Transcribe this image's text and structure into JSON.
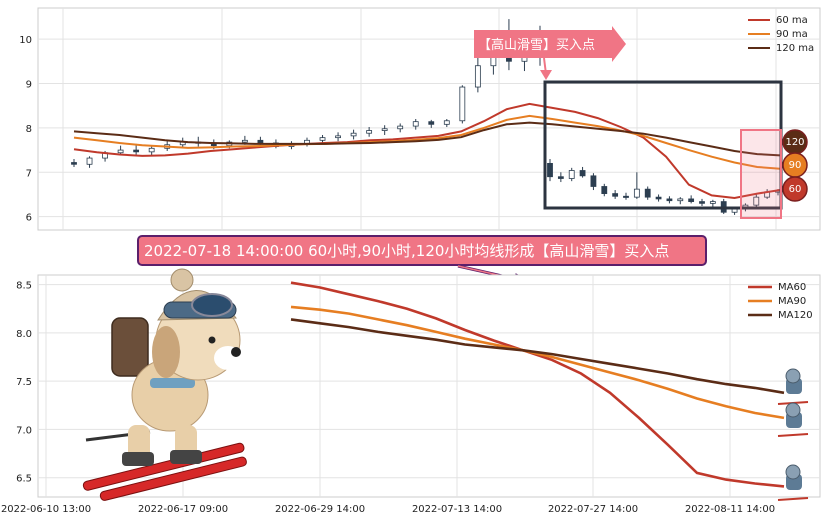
{
  "colors": {
    "ma60": "#c0392b",
    "ma90": "#e67e22",
    "ma120": "#5b2c16",
    "candle_up": "#ffffff",
    "candle_down": "#2c3e50",
    "highlight_box": "#2c3440",
    "pink_box": "#f07585",
    "callout_bg": "#f07585",
    "banner_bg": "#f07585",
    "banner_border": "#5b1f6b"
  },
  "annotations": {
    "callout_label": "【高山滑雪】买入点",
    "banner_label": "2022-07-18 14:00:00 60小时,90小时,120小时均线形成【高山滑雪】买入点",
    "badge_labels": [
      "120",
      "90",
      "60"
    ]
  },
  "chart_data": [
    {
      "type": "candlestick",
      "title": "",
      "ylim": [
        5.7,
        10.7
      ],
      "yticks": [
        6,
        7,
        8,
        9,
        10
      ],
      "grid": true,
      "legend_position": "top-right",
      "series": [
        {
          "name": "60 ma",
          "values": [
            7.52,
            7.45,
            7.4,
            7.37,
            7.38,
            7.42,
            7.48,
            7.52,
            7.56,
            7.6,
            7.63,
            7.66,
            7.68,
            7.72,
            7.74,
            7.78,
            7.82,
            7.92,
            8.15,
            8.42,
            8.54,
            8.45,
            8.36,
            8.22,
            8.02,
            7.78,
            7.35,
            6.72,
            6.48,
            6.42,
            6.52,
            6.6
          ]
        },
        {
          "name": "90 ma",
          "values": [
            7.78,
            7.72,
            7.66,
            7.61,
            7.58,
            7.55,
            7.56,
            7.58,
            7.59,
            7.61,
            7.63,
            7.64,
            7.66,
            7.68,
            7.7,
            7.73,
            7.77,
            7.84,
            8.0,
            8.18,
            8.27,
            8.2,
            8.12,
            8.04,
            7.94,
            7.82,
            7.66,
            7.5,
            7.35,
            7.22,
            7.12,
            7.08
          ]
        },
        {
          "name": "120 ma",
          "values": [
            7.92,
            7.88,
            7.84,
            7.78,
            7.72,
            7.68,
            7.66,
            7.65,
            7.64,
            7.64,
            7.64,
            7.64,
            7.65,
            7.66,
            7.68,
            7.7,
            7.73,
            7.79,
            7.95,
            8.08,
            8.12,
            8.08,
            8.03,
            7.98,
            7.93,
            7.87,
            7.78,
            7.68,
            7.58,
            7.48,
            7.41,
            7.38
          ]
        }
      ],
      "candles": [
        [
          7.22,
          7.3,
          7.12,
          7.18
        ],
        [
          7.18,
          7.36,
          7.1,
          7.32
        ],
        [
          7.32,
          7.48,
          7.24,
          7.44
        ],
        [
          7.44,
          7.6,
          7.38,
          7.5
        ],
        [
          7.5,
          7.64,
          7.4,
          7.46
        ],
        [
          7.46,
          7.58,
          7.36,
          7.54
        ],
        [
          7.54,
          7.7,
          7.48,
          7.62
        ],
        [
          7.62,
          7.78,
          7.56,
          7.68
        ],
        [
          7.68,
          7.8,
          7.58,
          7.66
        ],
        [
          7.66,
          7.74,
          7.52,
          7.6
        ],
        [
          7.6,
          7.72,
          7.54,
          7.68
        ],
        [
          7.68,
          7.82,
          7.62,
          7.72
        ],
        [
          7.72,
          7.8,
          7.62,
          7.66
        ],
        [
          7.66,
          7.74,
          7.54,
          7.58
        ],
        [
          7.58,
          7.7,
          7.52,
          7.64
        ],
        [
          7.64,
          7.78,
          7.58,
          7.72
        ],
        [
          7.72,
          7.84,
          7.66,
          7.78
        ],
        [
          7.78,
          7.9,
          7.7,
          7.82
        ],
        [
          7.82,
          7.96,
          7.74,
          7.88
        ],
        [
          7.88,
          8.02,
          7.8,
          7.94
        ],
        [
          7.94,
          8.06,
          7.84,
          7.98
        ],
        [
          7.98,
          8.1,
          7.9,
          8.04
        ],
        [
          8.04,
          8.2,
          7.96,
          8.14
        ],
        [
          8.14,
          8.18,
          8.0,
          8.08
        ],
        [
          8.08,
          8.2,
          8.02,
          8.16
        ],
        [
          8.16,
          8.96,
          8.1,
          8.92
        ],
        [
          8.92,
          9.7,
          8.8,
          9.4
        ],
        [
          9.4,
          10.1,
          9.2,
          9.7
        ],
        [
          9.7,
          10.45,
          9.3,
          9.5
        ],
        [
          9.5,
          10.2,
          9.28,
          9.8
        ],
        [
          9.8,
          10.3,
          9.4,
          9.6
        ],
        [
          7.2,
          7.3,
          6.8,
          6.9
        ],
        [
          6.9,
          7.0,
          6.78,
          6.86
        ],
        [
          6.86,
          7.1,
          6.8,
          7.04
        ],
        [
          7.04,
          7.12,
          6.88,
          6.92
        ],
        [
          6.92,
          6.98,
          6.6,
          6.68
        ],
        [
          6.68,
          6.74,
          6.46,
          6.52
        ],
        [
          6.52,
          6.6,
          6.4,
          6.46
        ],
        [
          6.46,
          6.54,
          6.38,
          6.44
        ],
        [
          6.44,
          7.0,
          6.4,
          6.62
        ],
        [
          6.62,
          6.68,
          6.38,
          6.44
        ],
        [
          6.44,
          6.5,
          6.34,
          6.4
        ],
        [
          6.4,
          6.46,
          6.3,
          6.36
        ],
        [
          6.36,
          6.44,
          6.28,
          6.4
        ],
        [
          6.4,
          6.48,
          6.3,
          6.34
        ],
        [
          6.34,
          6.4,
          6.24,
          6.3
        ],
        [
          6.3,
          6.38,
          6.2,
          6.34
        ],
        [
          6.34,
          6.4,
          6.06,
          6.1
        ],
        [
          6.1,
          6.22,
          6.04,
          6.18
        ],
        [
          6.18,
          6.3,
          6.12,
          6.26
        ],
        [
          6.26,
          6.5,
          6.2,
          6.44
        ],
        [
          6.44,
          6.62,
          6.4,
          6.56
        ],
        [
          6.56,
          6.62,
          6.48,
          6.58
        ]
      ]
    },
    {
      "type": "line",
      "title": "",
      "ylim": [
        6.3,
        8.6
      ],
      "yticks": [
        6.5,
        7.0,
        7.5,
        8.0,
        8.5
      ],
      "xticks": [
        "2022-06-10 13:00",
        "2022-06-17 09:00",
        "2022-06-29 14:00",
        "2022-07-13 14:00",
        "2022-07-27 14:00",
        "2022-08-11 14:00"
      ],
      "grid": true,
      "legend_position": "top-right",
      "series": [
        {
          "name": "MA60",
          "values": [
            8.52,
            8.47,
            8.4,
            8.33,
            8.25,
            8.15,
            8.03,
            7.92,
            7.82,
            7.72,
            7.58,
            7.38,
            7.12,
            6.84,
            6.55,
            6.48,
            6.44,
            6.41
          ]
        },
        {
          "name": "MA90",
          "values": [
            8.27,
            8.24,
            8.2,
            8.14,
            8.08,
            8.01,
            7.94,
            7.88,
            7.82,
            7.75,
            7.67,
            7.59,
            7.51,
            7.42,
            7.32,
            7.24,
            7.17,
            7.12
          ]
        },
        {
          "name": "MA120",
          "values": [
            8.14,
            8.1,
            8.06,
            8.01,
            7.97,
            7.93,
            7.88,
            7.85,
            7.82,
            7.78,
            7.73,
            7.68,
            7.63,
            7.58,
            7.52,
            7.47,
            7.43,
            7.38
          ]
        }
      ]
    }
  ]
}
